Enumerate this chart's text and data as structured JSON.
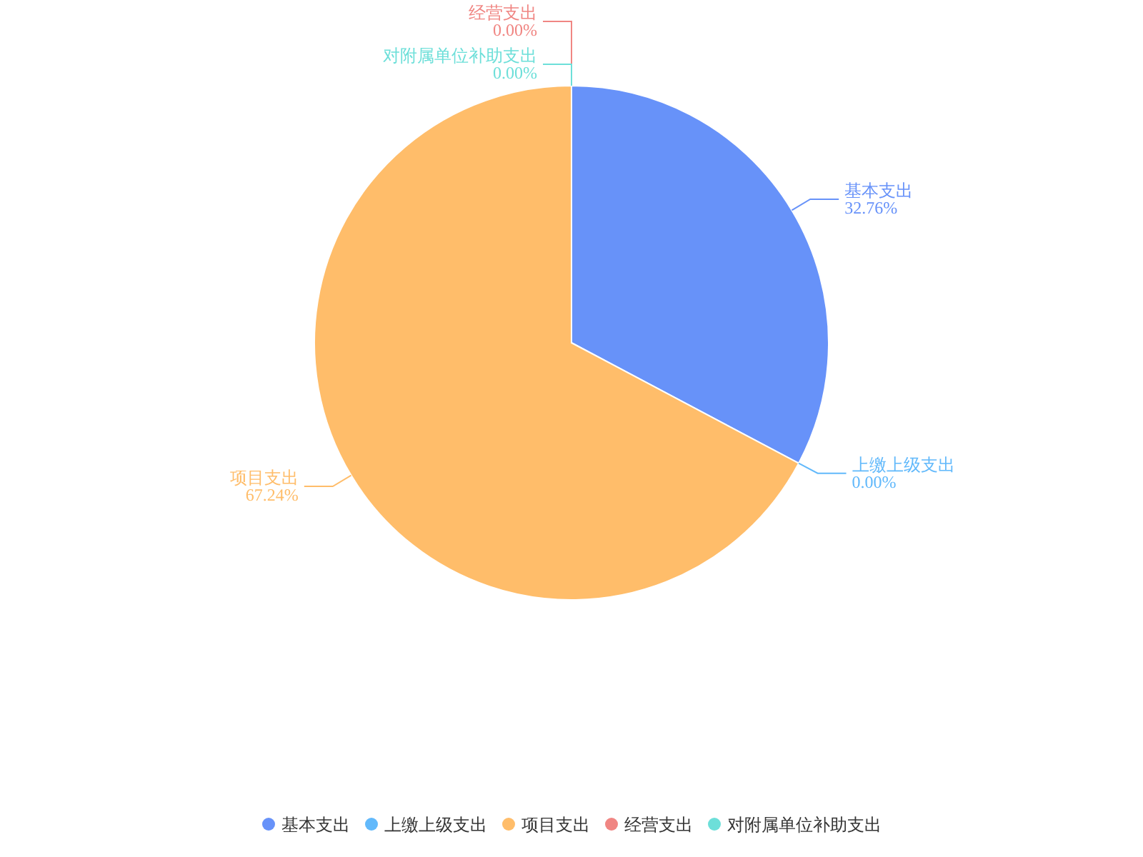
{
  "chart_data": {
    "type": "pie",
    "categories": [
      "基本支出",
      "上缴上级支出",
      "项目支出",
      "经营支出",
      "对附属单位补助支出"
    ],
    "values": [
      32.76,
      0,
      67.24,
      0,
      0
    ],
    "colors": [
      "#6792f9",
      "#62b9fb",
      "#ffbd6a",
      "#f08683",
      "#6ddfd9"
    ],
    "value_labels": [
      "32.76%",
      "0.00%",
      "67.24%",
      "0.00%",
      "0.00%"
    ],
    "legend": "bottom"
  }
}
